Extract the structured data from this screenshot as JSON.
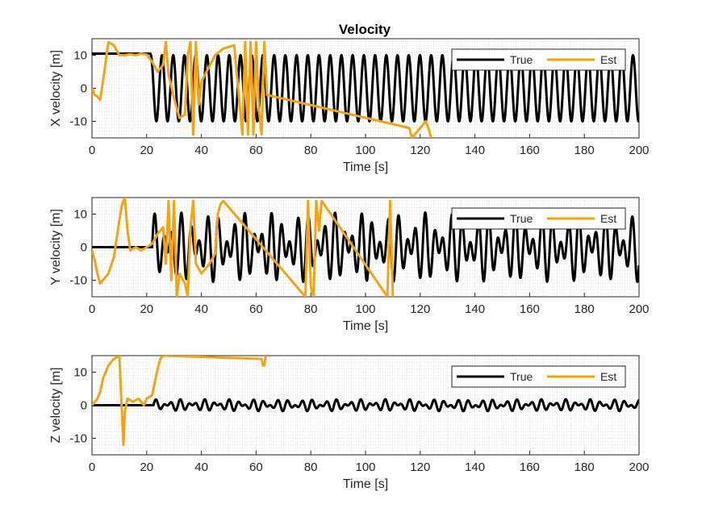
{
  "figure": {
    "title": "Velocity"
  },
  "colors": {
    "true": "#000000",
    "est": "#F5A30F",
    "grid": "#d9d9d9",
    "axis": "#262626"
  },
  "chart_data": [
    {
      "type": "line",
      "xlabel": "Time [s]",
      "ylabel": "X velocity [m]",
      "xlim": [
        0,
        200
      ],
      "ylim": [
        -15,
        15
      ],
      "xticks": [
        0,
        20,
        40,
        60,
        80,
        100,
        120,
        140,
        160,
        180,
        200
      ],
      "yticks": [
        -10,
        0,
        10
      ],
      "grid": "minor dotted",
      "legend": "top-right",
      "series": [
        {
          "name": "True",
          "description": "constant 10.5 until ~21 s, then sinusoid amplitude 10, period ~4.1 s",
          "points": [
            [
              0,
              10.5
            ],
            [
              21,
              10.5
            ],
            [
              22,
              8
            ],
            [
              23,
              -6
            ],
            [
              24,
              -10
            ],
            [
              26,
              -7
            ],
            [
              27,
              10
            ]
          ]
        },
        {
          "name": "Est",
          "points": [
            [
              0,
              0
            ],
            [
              1,
              -2
            ],
            [
              2,
              -2.5
            ],
            [
              3,
              -3.5
            ],
            [
              4,
              2
            ],
            [
              5,
              8
            ],
            [
              6,
              14
            ],
            [
              8,
              13
            ],
            [
              10,
              10
            ],
            [
              12,
              10
            ],
            [
              14,
              10.3
            ],
            [
              16,
              10
            ],
            [
              18,
              10.5
            ],
            [
              20,
              10.2
            ],
            [
              22,
              8
            ],
            [
              24,
              5
            ],
            [
              26,
              7
            ],
            [
              27,
              14
            ],
            [
              28,
              4
            ],
            [
              30,
              -3
            ],
            [
              32,
              -9
            ],
            [
              34,
              -8
            ],
            [
              35,
              10
            ],
            [
              36,
              14
            ],
            [
              37,
              -14
            ],
            [
              38,
              14
            ],
            [
              39,
              -5
            ],
            [
              40,
              2
            ],
            [
              45,
              10
            ],
            [
              48,
              12
            ],
            [
              52,
              13
            ],
            [
              55,
              -14
            ],
            [
              56,
              14
            ],
            [
              57,
              -14
            ],
            [
              58,
              14
            ],
            [
              59,
              -14
            ],
            [
              60,
              14
            ],
            [
              61,
              -6
            ],
            [
              62,
              -14
            ],
            [
              63,
              14
            ],
            [
              64,
              -2
            ],
            [
              116,
              -12
            ],
            [
              117,
              -15
            ],
            [
              122,
              -10
            ],
            [
              123,
              -12
            ],
            [
              124,
              -15
            ]
          ]
        }
      ]
    },
    {
      "type": "line",
      "xlabel": "Time [s]",
      "ylabel": "Y velocity [m]",
      "xlim": [
        0,
        200
      ],
      "ylim": [
        -15,
        15
      ],
      "xticks": [
        0,
        20,
        40,
        60,
        80,
        100,
        120,
        140,
        160,
        180,
        200
      ],
      "yticks": [
        -10,
        0,
        10
      ],
      "grid": "minor dotted",
      "legend": "top-right",
      "series": [
        {
          "name": "True",
          "description": "0 until ~22 s, then sum of two sinusoids with amplitude ~10",
          "points": [
            [
              0,
              0
            ],
            [
              22,
              0
            ],
            [
              24,
              10
            ],
            [
              26,
              -10
            ],
            [
              28,
              8
            ],
            [
              30,
              -10
            ]
          ]
        },
        {
          "name": "Est",
          "points": [
            [
              0,
              -1
            ],
            [
              1,
              -4
            ],
            [
              2,
              -8
            ],
            [
              3,
              -11
            ],
            [
              4,
              -10
            ],
            [
              6,
              -8
            ],
            [
              8,
              -3
            ],
            [
              10,
              8
            ],
            [
              11,
              13
            ],
            [
              12,
              15
            ],
            [
              13,
              5
            ],
            [
              14,
              -1
            ],
            [
              16,
              0
            ],
            [
              18,
              -1
            ],
            [
              20,
              0
            ],
            [
              22,
              1
            ],
            [
              24,
              4
            ],
            [
              26,
              6
            ],
            [
              27,
              -5
            ],
            [
              28,
              14
            ],
            [
              29,
              -10
            ],
            [
              30,
              14
            ],
            [
              31,
              -15
            ],
            [
              32,
              -8
            ],
            [
              34,
              -11
            ],
            [
              35,
              -15
            ],
            [
              36,
              6
            ],
            [
              37,
              14
            ],
            [
              38,
              -5
            ],
            [
              40,
              -8
            ],
            [
              43,
              -5
            ],
            [
              45,
              -2
            ],
            [
              46,
              10
            ],
            [
              47,
              13
            ],
            [
              48,
              14
            ],
            [
              78,
              -15
            ],
            [
              79,
              14
            ],
            [
              80,
              -12
            ],
            [
              81,
              -15
            ],
            [
              82,
              14
            ],
            [
              83,
              5
            ],
            [
              84,
              14
            ],
            [
              108,
              -15
            ],
            [
              109,
              14
            ],
            [
              110,
              -15
            ]
          ]
        }
      ]
    },
    {
      "type": "line",
      "xlabel": "Time [s]",
      "ylabel": "Z velocity [m]",
      "xlim": [
        0,
        200
      ],
      "ylim": [
        -15,
        15
      ],
      "xticks": [
        0,
        20,
        40,
        60,
        80,
        100,
        120,
        140,
        160,
        180,
        200
      ],
      "yticks": [
        -10,
        0,
        10
      ],
      "grid": "minor dotted",
      "legend": "top-right",
      "series": [
        {
          "name": "True",
          "description": "0 until ~22 s, then small oscillation amplitude ~1.5",
          "points": [
            [
              0,
              0
            ],
            [
              22,
              0
            ],
            [
              24,
              1.5
            ],
            [
              26,
              -1.5
            ]
          ]
        },
        {
          "name": "Est",
          "points": [
            [
              0,
              0
            ],
            [
              1,
              1
            ],
            [
              2,
              2
            ],
            [
              3,
              4
            ],
            [
              4,
              8
            ],
            [
              5,
              10
            ],
            [
              6,
              12
            ],
            [
              8,
              14
            ],
            [
              10,
              15
            ],
            [
              11,
              -3
            ],
            [
              11.5,
              -12
            ],
            [
              12,
              -2
            ],
            [
              13,
              2
            ],
            [
              15,
              1
            ],
            [
              17,
              2
            ],
            [
              19,
              0
            ],
            [
              20,
              2
            ],
            [
              22,
              3
            ],
            [
              23,
              7
            ],
            [
              24,
              11
            ],
            [
              25,
              14
            ],
            [
              26,
              15
            ],
            [
              62,
              14
            ],
            [
              62.5,
              12
            ],
            [
              63,
              12
            ],
            [
              63.5,
              15
            ]
          ]
        }
      ]
    }
  ]
}
